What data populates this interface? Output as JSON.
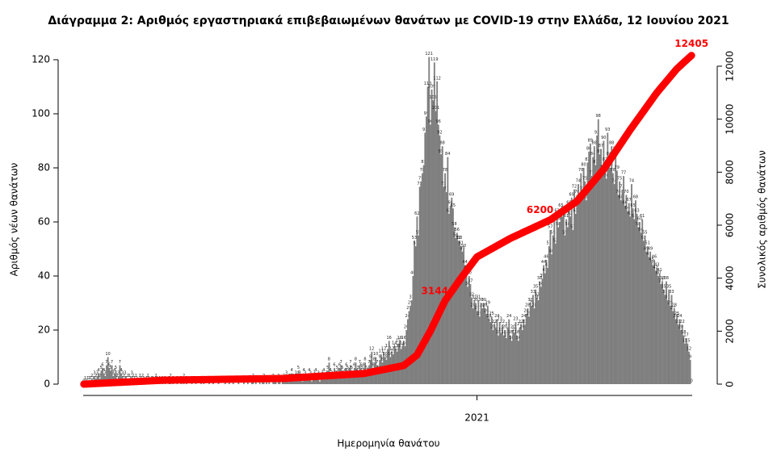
{
  "chart_data": {
    "type": "bar",
    "title": "Διάγραμμα 2: Αριθμός εργαστηριακά επιβεβαιωμένων θανάτων με COVID-19 στην Ελλάδα, 12 Ιουνίου 2021",
    "x_label": "Ημερομηνία θανάτου",
    "y_label": "Αριθμός νέων θανάτων",
    "y2_label": "Συνολικός αριθμός θανάτων",
    "ylim": [
      0,
      120
    ],
    "yticks": [
      0,
      20,
      40,
      60,
      80,
      100,
      120
    ],
    "y2lim": [
      0,
      12000
    ],
    "y2ticks": [
      0,
      2000,
      4000,
      6000,
      8000,
      10000,
      12000
    ],
    "annotations": [
      3144,
      6200,
      12405
    ],
    "annotation_color": "#ff0000",
    "categories": [
      null,
      null,
      null,
      null,
      null,
      null,
      null,
      null,
      null,
      null,
      null,
      null,
      null,
      null,
      null,
      null,
      null,
      null,
      null,
      null,
      null,
      null,
      null,
      null,
      null,
      null,
      null,
      null,
      null,
      null,
      null,
      null,
      null,
      null,
      null,
      null,
      null,
      null,
      null,
      null,
      null,
      null,
      null,
      null,
      null,
      null,
      null,
      null,
      null,
      null,
      null,
      null,
      null,
      null,
      null,
      null,
      null,
      null,
      null,
      null,
      null,
      null,
      null,
      null,
      null,
      null,
      null,
      null,
      null,
      null,
      null,
      null,
      null,
      null,
      null,
      null,
      null,
      null,
      null,
      null,
      null,
      null,
      null,
      null,
      null,
      null,
      null,
      null,
      null,
      null,
      null,
      null,
      null,
      null,
      null,
      null,
      null,
      null,
      null,
      null,
      null,
      null,
      null,
      null,
      null,
      null,
      null,
      null,
      null,
      null,
      null,
      null,
      null,
      null,
      null,
      null,
      null,
      null,
      null,
      null,
      null,
      null,
      null,
      null,
      null,
      null,
      null,
      null,
      null,
      null,
      null,
      null,
      null,
      null,
      null,
      null,
      null,
      null,
      null,
      null,
      null,
      null,
      null,
      null,
      null,
      null,
      null,
      null,
      null,
      null,
      null,
      null,
      null,
      null,
      null,
      null,
      null,
      null,
      null,
      null,
      null,
      null,
      null,
      null,
      null,
      null,
      null,
      null,
      null,
      null,
      null,
      null,
      null,
      null,
      null,
      null,
      null,
      null,
      null,
      null,
      null,
      null,
      null,
      null,
      null,
      null,
      null,
      null,
      null,
      null,
      null,
      null,
      null,
      null,
      null,
      null,
      null,
      null,
      null,
      null,
      null,
      null,
      null,
      null,
      null,
      null,
      null,
      null,
      null,
      null,
      null,
      null,
      null,
      null,
      null,
      null,
      null,
      null,
      null,
      null,
      null,
      null,
      null,
      null,
      null,
      null,
      null,
      null,
      null,
      null,
      null,
      null,
      null,
      null,
      null,
      null,
      null,
      null,
      null,
      null,
      null,
      null,
      null,
      null,
      null,
      null,
      null,
      null,
      null,
      null,
      null,
      null,
      null,
      null,
      null,
      null,
      null,
      null,
      null,
      null,
      null,
      null,
      null,
      null,
      null,
      null,
      null,
      null,
      null,
      null,
      null,
      null,
      null,
      null,
      null,
      null,
      null,
      null,
      null,
      null,
      null,
      null,
      null,
      null,
      null,
      null,
      null,
      null,
      null,
      null,
      null,
      null,
      null,
      null,
      null,
      "2021",
      null,
      null,
      null,
      null,
      null,
      null,
      null,
      null,
      null,
      null,
      null,
      null,
      null,
      null,
      null,
      null,
      null,
      null,
      null,
      null,
      null,
      null,
      null,
      null,
      null,
      null,
      null,
      null,
      null,
      null,
      null,
      null,
      null,
      null,
      null,
      null,
      null,
      null,
      null,
      null,
      null,
      null,
      null,
      null,
      null,
      null,
      null,
      null,
      null,
      null,
      null,
      null,
      null,
      null,
      null,
      null,
      null,
      null,
      null,
      null,
      null,
      null,
      null,
      null,
      null,
      null,
      null,
      null,
      null,
      null,
      null,
      null,
      null,
      null,
      null,
      null,
      null,
      null,
      null,
      null,
      null,
      null,
      null,
      null,
      null,
      null,
      null,
      null,
      null,
      null,
      null,
      null,
      null,
      null,
      null,
      null,
      null,
      null,
      null,
      null,
      null,
      null,
      null,
      null,
      null,
      null,
      null,
      null,
      null,
      null,
      null,
      null,
      null,
      null,
      null,
      null,
      null,
      null,
      null,
      null,
      null,
      null,
      null,
      null,
      null,
      null,
      null,
      null,
      null,
      null,
      null,
      null,
      null,
      null,
      null,
      null,
      null,
      null,
      null,
      null,
      null,
      null,
      null,
      null,
      null,
      null,
      null,
      null,
      null,
      null,
      null,
      null,
      null,
      null,
      null,
      null,
      null,
      null,
      null,
      null,
      null
    ],
    "series": [
      {
        "color": "#7f7f7f",
        "values": [
          0,
          1,
          0,
          1,
          1,
          1,
          2,
          1,
          3,
          2,
          3,
          4,
          2,
          5,
          6,
          4,
          3,
          7,
          10,
          6,
          5,
          7,
          3,
          4,
          5,
          2,
          3,
          7,
          4,
          3,
          2,
          3,
          1,
          2,
          2,
          1,
          3,
          2,
          1,
          2,
          1,
          0,
          2,
          1,
          2,
          1,
          0,
          1,
          2,
          1,
          0,
          1,
          1,
          0,
          2,
          1,
          0,
          1,
          0,
          1,
          0,
          1,
          0,
          0,
          1,
          2,
          0,
          1,
          0,
          0,
          1,
          0,
          0,
          1,
          0,
          2,
          0,
          1,
          0,
          0,
          0,
          1,
          0,
          0,
          1,
          0,
          0,
          0,
          1,
          0,
          1,
          0,
          0,
          0,
          1,
          0,
          0,
          1,
          0,
          0,
          0,
          1,
          0,
          0,
          0,
          0,
          1,
          0,
          0,
          1,
          0,
          0,
          1,
          0,
          0,
          0,
          1,
          0,
          0,
          0,
          1,
          0,
          0,
          1,
          0,
          0,
          1,
          2,
          0,
          1,
          0,
          0,
          1,
          0,
          1,
          2,
          0,
          1,
          0,
          1,
          0,
          0,
          2,
          1,
          1,
          0,
          2,
          1,
          0,
          1,
          2,
          1,
          3,
          1,
          2,
          2,
          4,
          2,
          1,
          3,
          2,
          5,
          3,
          2,
          1,
          4,
          3,
          2,
          2,
          4,
          3,
          1,
          2,
          3,
          4,
          2,
          3,
          1,
          2,
          3,
          4,
          2,
          3,
          5,
          8,
          4,
          3,
          2,
          6,
          3,
          5,
          4,
          6,
          7,
          5,
          3,
          4,
          6,
          5,
          4,
          7,
          5,
          3,
          6,
          8,
          4,
          5,
          7,
          6,
          5,
          6,
          8,
          5,
          4,
          7,
          9,
          12,
          6,
          8,
          10,
          7,
          5,
          9,
          11,
          8,
          12,
          10,
          9,
          13,
          16,
          10,
          12,
          11,
          14,
          13,
          12,
          15,
          16,
          13,
          14,
          16,
          14,
          20,
          24,
          27,
          29,
          31,
          40,
          53,
          51,
          62,
          55,
          73,
          75,
          78,
          81,
          93,
          99,
          110,
          121,
          96,
          109,
          105,
          119,
          101,
          112,
          96,
          92,
          85,
          88,
          73,
          78,
          71,
          84,
          63,
          66,
          69,
          65,
          58,
          54,
          56,
          53,
          53,
          51,
          49,
          50,
          44,
          42,
          36,
          40,
          37,
          32,
          28,
          31,
          30,
          27,
          31,
          25,
          30,
          28,
          30,
          28,
          26,
          29,
          24,
          23,
          25,
          20,
          22,
          21,
          24,
          18,
          23,
          19,
          22,
          18,
          20,
          17,
          21,
          24,
          18,
          16,
          20,
          19,
          23,
          18,
          16,
          21,
          22,
          20,
          24,
          22,
          26,
          28,
          25,
          30,
          29,
          33,
          28,
          35,
          32,
          31,
          38,
          36,
          39,
          44,
          41,
          46,
          43,
          51,
          57,
          48,
          55,
          61,
          52,
          63,
          58,
          60,
          65,
          62,
          64,
          55,
          61,
          58,
          66,
          62,
          69,
          57,
          72,
          63,
          70,
          74,
          67,
          78,
          71,
          80,
          75,
          68,
          82,
          86,
          89,
          77,
          84,
          88,
          81,
          92,
          98,
          85,
          87,
          79,
          90,
          82,
          76,
          93,
          84,
          80,
          88,
          78,
          74,
          86,
          79,
          70,
          75,
          68,
          72,
          77,
          66,
          70,
          64,
          67,
          62,
          74,
          65,
          61,
          68,
          63,
          58,
          60,
          56,
          61,
          53,
          55,
          49,
          51,
          47,
          49,
          45,
          44,
          46,
          42,
          43,
          40,
          41,
          37,
          38,
          35,
          33,
          38,
          31,
          35,
          29,
          33,
          27,
          28,
          24,
          25,
          22,
          24,
          20,
          22,
          18,
          15,
          17,
          15,
          12,
          9,
          0
        ]
      },
      {
        "type": "line",
        "axis": "y2",
        "color": "#ff0000",
        "values": [
          0,
          3,
          5,
          8,
          10,
          13,
          15,
          18,
          20,
          23,
          25,
          28,
          30,
          33,
          35,
          38,
          40,
          43,
          45,
          48,
          50,
          53,
          55,
          58,
          60,
          63,
          65,
          68,
          70,
          73,
          75,
          78,
          80,
          83,
          85,
          88,
          90,
          93,
          95,
          98,
          100,
          103,
          105,
          108,
          110,
          113,
          115,
          118,
          120,
          123,
          125,
          128,
          130,
          133,
          135,
          138,
          140,
          143,
          145,
          148,
          150,
          151,
          151,
          152,
          153,
          154,
          154,
          155,
          156,
          156,
          157,
          158,
          159,
          159,
          160,
          161,
          162,
          162,
          163,
          164,
          164,
          165,
          166,
          167,
          167,
          168,
          169,
          169,
          170,
          171,
          172,
          172,
          173,
          174,
          175,
          175,
          176,
          177,
          177,
          178,
          179,
          180,
          180,
          181,
          182,
          182,
          183,
          184,
          185,
          185,
          186,
          187,
          188,
          188,
          189,
          190,
          190,
          191,
          192,
          193,
          193,
          194,
          195,
          195,
          196,
          197,
          198,
          198,
          199,
          200,
          201,
          201,
          202,
          203,
          203,
          204,
          205,
          206,
          206,
          207,
          208,
          208,
          209,
          210,
          211,
          211,
          212,
          213,
          214,
          214,
          215,
          218,
          221,
          224,
          227,
          230,
          233,
          237,
          240,
          243,
          246,
          249,
          252,
          255,
          258,
          261,
          264,
          267,
          270,
          273,
          277,
          280,
          283,
          286,
          289,
          292,
          295,
          298,
          301,
          304,
          307,
          310,
          313,
          317,
          320,
          323,
          326,
          329,
          332,
          335,
          338,
          341,
          344,
          347,
          350,
          353,
          357,
          360,
          363,
          366,
          369,
          372,
          375,
          378,
          381,
          384,
          387,
          390,
          394,
          397,
          400,
          410,
          420,
          430,
          440,
          450,
          460,
          470,
          480,
          490,
          500,
          510,
          520,
          530,
          540,
          550,
          560,
          570,
          580,
          590,
          600,
          610,
          620,
          630,
          640,
          650,
          660,
          670,
          680,
          690,
          700,
          740,
          780,
          820,
          860,
          900,
          940,
          980,
          1020,
          1060,
          1100,
          1190,
          1280,
          1370,
          1460,
          1550,
          1640,
          1730,
          1820,
          1910,
          2000,
          2104,
          2208,
          2312,
          2416,
          2520,
          2624,
          2728,
          2832,
          2936,
          3040,
          3144,
          3215,
          3287,
          3358,
          3429,
          3501,
          3572,
          3643,
          3715,
          3786,
          3857,
          3929,
          4000,
          4067,
          4133,
          4200,
          4267,
          4333,
          4400,
          4467,
          4533,
          4600,
          4667,
          4733,
          4800,
          4828,
          4856,
          4884,
          4912,
          4940,
          4968,
          4996,
          5024,
          5052,
          5080,
          5108,
          5136,
          5164,
          5192,
          5220,
          5248,
          5276,
          5304,
          5332,
          5360,
          5388,
          5416,
          5444,
          5472,
          5500,
          5523,
          5547,
          5570,
          5593,
          5617,
          5640,
          5663,
          5687,
          5710,
          5733,
          5757,
          5780,
          5803,
          5827,
          5850,
          5873,
          5897,
          5920,
          5943,
          5967,
          5990,
          6013,
          6037,
          6060,
          6083,
          6107,
          6130,
          6153,
          6177,
          6200,
          6235,
          6270,
          6305,
          6340,
          6375,
          6410,
          6445,
          6480,
          6515,
          6550,
          6585,
          6620,
          6655,
          6690,
          6725,
          6760,
          6795,
          6830,
          6865,
          6900,
          6960,
          7020,
          7080,
          7140,
          7200,
          7260,
          7320,
          7380,
          7440,
          7500,
          7560,
          7620,
          7680,
          7740,
          7800,
          7860,
          7920,
          7980,
          8040,
          8100,
          8175,
          8250,
          8325,
          8400,
          8475,
          8550,
          8625,
          8700,
          8775,
          8850,
          8925,
          9000,
          9075,
          9150,
          9225,
          9300,
          9375,
          9450,
          9525,
          9600,
          9670,
          9740,
          9810,
          9880,
          9950,
          10020,
          10090,
          10160,
          10230,
          10300,
          10370,
          10440,
          10510,
          10580,
          10650,
          10720,
          10790,
          10860,
          10930,
          11000,
          11060,
          11120,
          11180,
          11240,
          11300,
          11360,
          11420,
          11480,
          11540,
          11600,
          11660,
          11720,
          11780,
          11840,
          11900,
          11946,
          11992,
          12038,
          12084,
          12130,
          12176,
          12222,
          12268,
          12314,
          12360,
          12405
        ]
      }
    ]
  }
}
